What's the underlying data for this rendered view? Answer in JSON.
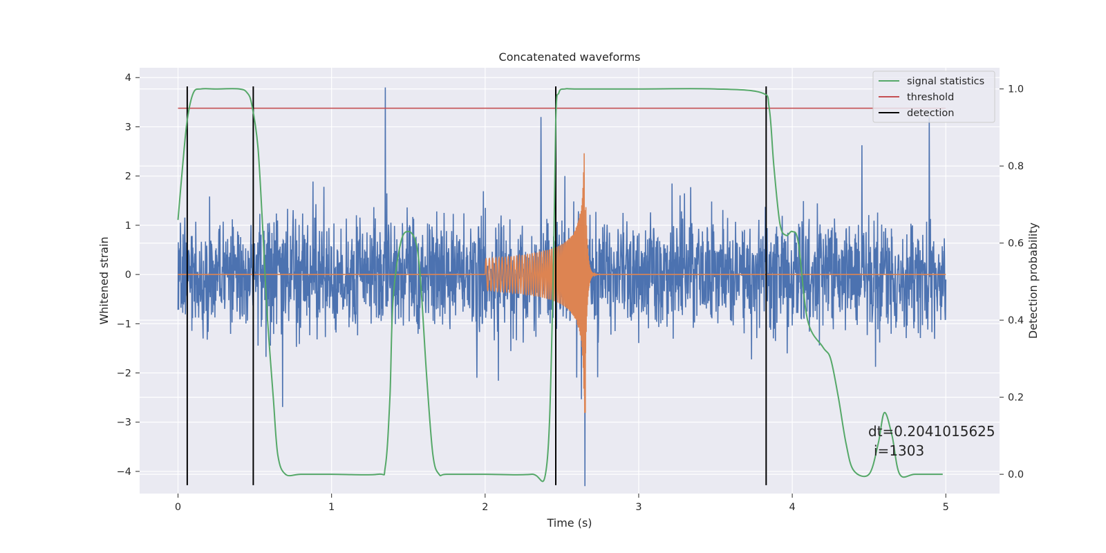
{
  "chart_data": {
    "type": "line",
    "title": "Concatenated waveforms",
    "xlabel": "Time (s)",
    "ylabel": "Whitened strain",
    "y2label": "Detection probability",
    "xlim": [
      -0.25,
      5.35
    ],
    "ylim": [
      -4.45,
      4.2
    ],
    "y2lim": [
      -0.05,
      1.055
    ],
    "xticks": [
      "0",
      "1",
      "2",
      "3",
      "4",
      "5"
    ],
    "yticks": [
      "4",
      "3",
      "2",
      "1",
      "0",
      "−1",
      "−2",
      "−3",
      "−4"
    ],
    "y2ticks": [
      "1.0",
      "0.8",
      "0.6",
      "0.4",
      "0.2",
      "0.0"
    ],
    "grid": true,
    "legend_position": "top-right",
    "legend": [
      {
        "label": "signal statistics",
        "color": "#55a868"
      },
      {
        "label": "threshold",
        "color": "#c44e52"
      },
      {
        "label": "detection",
        "color": "#000000"
      }
    ],
    "series": [
      {
        "name": "",
        "role": "strain noise",
        "color": "#4c72b0",
        "x_range": [
          0,
          5
        ],
        "amplitude_envelope": 1.1,
        "peak_values": [
          3.8,
          -4.3
        ]
      },
      {
        "name": "",
        "role": "injected waveform",
        "color": "#dd8452",
        "x_start": 2.0,
        "x_merger": 2.65,
        "peak_values": [
          2.15,
          -2.8
        ]
      },
      {
        "name": "signal statistics",
        "axis": "right",
        "color": "#55a868",
        "x": [
          0,
          0.03,
          0.06,
          0.1,
          0.15,
          0.25,
          0.4,
          0.45,
          0.48,
          0.52,
          0.55,
          0.58,
          0.62,
          0.65,
          0.7,
          0.8,
          1.0,
          1.3,
          1.35,
          1.38,
          1.4,
          1.45,
          1.5,
          1.55,
          1.58,
          1.62,
          1.66,
          1.7,
          1.75,
          2.0,
          2.3,
          2.4,
          2.44,
          2.46,
          2.48,
          2.52,
          2.6,
          3.0,
          3.5,
          3.8,
          3.85,
          3.88,
          3.92,
          3.96,
          4.0,
          4.04,
          4.1,
          4.2,
          4.25,
          4.3,
          4.35,
          4.4,
          4.5,
          4.56,
          4.6,
          4.65,
          4.7,
          4.8,
          4.98
        ],
        "y": [
          0.66,
          0.8,
          0.92,
          0.99,
          1.0,
          1.0,
          1.0,
          0.99,
          0.96,
          0.85,
          0.65,
          0.42,
          0.2,
          0.05,
          0.0,
          0.0,
          0.0,
          0.0,
          0.02,
          0.2,
          0.45,
          0.6,
          0.63,
          0.6,
          0.5,
          0.25,
          0.05,
          0.0,
          0.0,
          0.0,
          0.0,
          0.02,
          0.45,
          0.92,
          0.99,
          1.0,
          1.0,
          1.0,
          1.0,
          0.99,
          0.95,
          0.8,
          0.65,
          0.62,
          0.63,
          0.6,
          0.4,
          0.33,
          0.3,
          0.2,
          0.08,
          0.01,
          0.0,
          0.08,
          0.16,
          0.1,
          0.0,
          0.0,
          0.0
        ]
      },
      {
        "name": "threshold",
        "axis": "right",
        "color": "#c44e52",
        "x": [
          0,
          5
        ],
        "y": [
          0.95,
          0.95
        ]
      }
    ],
    "detections": [
      0.06,
      0.49,
      2.46,
      3.83
    ],
    "detection_range": [
      -4.28,
      3.82
    ],
    "annotation": {
      "line1": "dt=0.2041015625",
      "line2": "i=1303",
      "x": 4.5,
      "y2": 0.11
    }
  }
}
